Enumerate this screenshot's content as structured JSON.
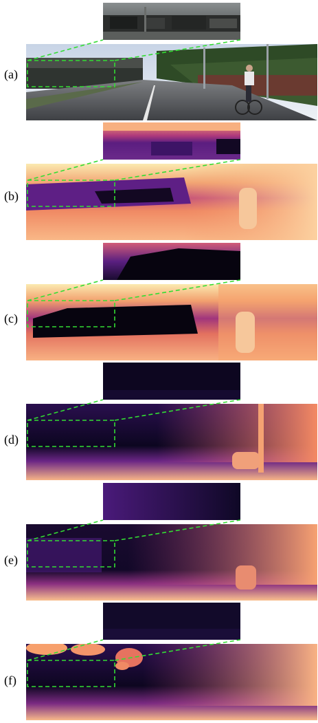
{
  "panels": [
    {
      "label": "(a)",
      "kind": "rgb"
    },
    {
      "label": "(b)",
      "kind": "depth_b"
    },
    {
      "label": "(c)",
      "kind": "depth_c"
    },
    {
      "label": "(d)",
      "kind": "depth_d"
    },
    {
      "label": "(e)",
      "kind": "depth_e"
    },
    {
      "label": "(f)",
      "kind": "depth_f"
    }
  ],
  "colors": {
    "dashed_box": "#33dd33",
    "magma_dark": "#0b0518",
    "magma_purple": "#4a1a7a",
    "magma_magenta": "#b33a7a",
    "magma_orange": "#f2855a",
    "magma_yellow": "#fbecb0"
  }
}
